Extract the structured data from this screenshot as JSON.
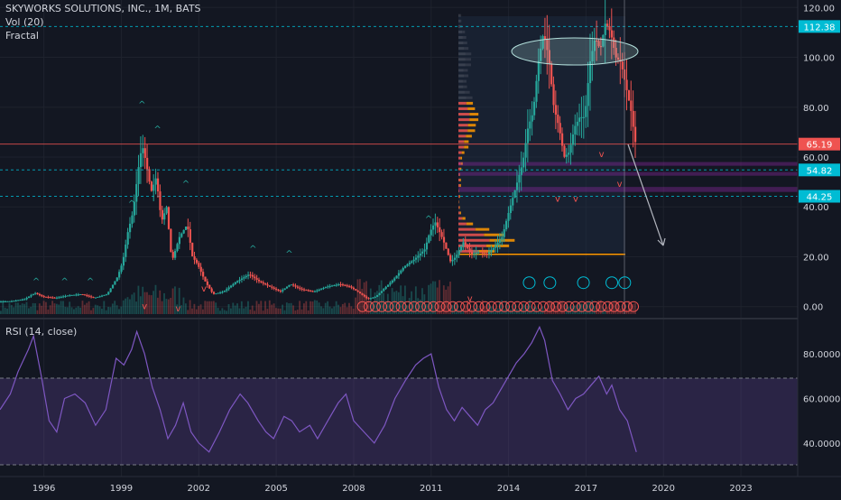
{
  "header": {
    "symbol_line": "SKYWORKS SOLUTIONS, INC., 1M, BATS",
    "vol_label": "Vol (20)",
    "fractal_label": "Fractal"
  },
  "rsi": {
    "label": "RSI (14, close)",
    "ticks": [
      {
        "value": 80,
        "label": "80.0000"
      },
      {
        "value": 60,
        "label": "60.0000"
      },
      {
        "value": 40,
        "label": "40.0000"
      }
    ],
    "upper_band": 70,
    "lower_band": 30,
    "band_color": "#7e57c2"
  },
  "colors": {
    "background": "#131722",
    "up": "#26a69a",
    "down": "#ef5350",
    "text": "#d1d4dc",
    "resistance": "#00bcd4",
    "support_band": "#9c27b0",
    "volume_profile_up": "#ef5350",
    "volume_profile_down": "#ff9800"
  },
  "chart_data": [
    {
      "type": "line",
      "title": "SKYWORKS SOLUTIONS, INC., 1M, BATS",
      "yticks": [
        {
          "value": 120,
          "label": "120.00"
        },
        {
          "value": 100,
          "label": "100.00"
        },
        {
          "value": 80,
          "label": "80.00"
        },
        {
          "value": 60,
          "label": "60.00"
        },
        {
          "value": 40,
          "label": "40.00"
        },
        {
          "value": 20,
          "label": "20.00"
        },
        {
          "value": 0,
          "label": "0.00"
        }
      ],
      "xticks": [
        "1996",
        "1999",
        "2002",
        "2005",
        "2008",
        "2011",
        "2014",
        "2017",
        "2020",
        "2023"
      ],
      "xtick_years": [
        1996,
        1999,
        2002,
        2005,
        2008,
        2011,
        2014,
        2017,
        2020,
        2023
      ],
      "ylim": [
        -3,
        123
      ],
      "xlim": [
        1994.3,
        2025.2
      ],
      "price_levels": [
        {
          "value": 112.38,
          "label": "112.38",
          "color": "#00bcd4"
        },
        {
          "value": 65.19,
          "label": "65.19",
          "color": "#ef5350"
        },
        {
          "value": 54.82,
          "label": "54.82",
          "color": "#00bcd4"
        },
        {
          "value": 44.25,
          "label": "44.25",
          "color": "#00bcd4"
        }
      ],
      "support_bands": [
        [
          56.5,
          58
        ],
        [
          52.5,
          54
        ],
        [
          46,
          48
        ]
      ],
      "series": [
        {
          "values": [
            [
              1994.3,
              2
            ],
            [
              1994.8,
              2.2
            ],
            [
              1995.3,
              3
            ],
            [
              1995.7,
              5.5
            ],
            [
              1996.0,
              4
            ],
            [
              1996.5,
              3.5
            ],
            [
              1997.0,
              4.5
            ],
            [
              1997.5,
              5
            ],
            [
              1998.0,
              3.5
            ],
            [
              1998.5,
              5
            ],
            [
              1998.9,
              12
            ],
            [
              1999.1,
              18
            ],
            [
              1999.3,
              30
            ],
            [
              1999.5,
              38
            ],
            [
              1999.7,
              55
            ],
            [
              1999.85,
              65
            ],
            [
              2000.0,
              58
            ],
            [
              2000.2,
              46
            ],
            [
              2000.4,
              52
            ],
            [
              2000.6,
              34
            ],
            [
              2000.8,
              40
            ],
            [
              2001.0,
              18
            ],
            [
              2001.3,
              28
            ],
            [
              2001.6,
              33
            ],
            [
              2001.8,
              20
            ],
            [
              2002.0,
              17
            ],
            [
              2002.3,
              10
            ],
            [
              2002.6,
              5
            ],
            [
              2003.0,
              6
            ],
            [
              2003.5,
              10
            ],
            [
              2004.0,
              13
            ],
            [
              2004.4,
              10
            ],
            [
              2004.8,
              8
            ],
            [
              2005.2,
              6
            ],
            [
              2005.6,
              9
            ],
            [
              2006.0,
              7
            ],
            [
              2006.5,
              6
            ],
            [
              2007.0,
              8
            ],
            [
              2007.5,
              9
            ],
            [
              2007.9,
              8
            ],
            [
              2008.2,
              6
            ],
            [
              2008.6,
              3
            ],
            [
              2008.9,
              4
            ],
            [
              2009.2,
              7
            ],
            [
              2009.6,
              11
            ],
            [
              2010.0,
              16
            ],
            [
              2010.4,
              19
            ],
            [
              2010.8,
              23
            ],
            [
              2011.0,
              30
            ],
            [
              2011.2,
              34
            ],
            [
              2011.5,
              27
            ],
            [
              2011.8,
              18
            ],
            [
              2012.0,
              20
            ],
            [
              2012.3,
              26
            ],
            [
              2012.6,
              21
            ],
            [
              2012.9,
              22
            ],
            [
              2013.2,
              21
            ],
            [
              2013.5,
              24
            ],
            [
              2013.8,
              28
            ],
            [
              2014.0,
              36
            ],
            [
              2014.3,
              47
            ],
            [
              2014.6,
              58
            ],
            [
              2014.8,
              72
            ],
            [
              2015.0,
              78
            ],
            [
              2015.2,
              98
            ],
            [
              2015.4,
              110
            ],
            [
              2015.6,
              100
            ],
            [
              2015.8,
              80
            ],
            [
              2016.0,
              72
            ],
            [
              2016.2,
              60
            ],
            [
              2016.4,
              62
            ],
            [
              2016.6,
              72
            ],
            [
              2016.8,
              76
            ],
            [
              2017.0,
              76
            ],
            [
              2017.2,
              98
            ],
            [
              2017.4,
              108
            ],
            [
              2017.6,
              103
            ],
            [
              2017.8,
              114
            ],
            [
              2018.0,
              110
            ],
            [
              2018.2,
              100
            ],
            [
              2018.4,
              98
            ],
            [
              2018.6,
              88
            ],
            [
              2018.8,
              78
            ],
            [
              2018.95,
              66
            ]
          ]
        }
      ]
    },
    {
      "type": "line",
      "title": "RSI (14, close)",
      "ylim": [
        25,
        95
      ],
      "series": [
        {
          "values": [
            [
              1994.3,
              55
            ],
            [
              1994.7,
              62
            ],
            [
              1995.0,
              72
            ],
            [
              1995.4,
              82
            ],
            [
              1995.6,
              88
            ],
            [
              1995.9,
              70
            ],
            [
              1996.2,
              50
            ],
            [
              1996.5,
              45
            ],
            [
              1996.8,
              60
            ],
            [
              1997.2,
              62
            ],
            [
              1997.6,
              58
            ],
            [
              1998.0,
              48
            ],
            [
              1998.4,
              55
            ],
            [
              1998.8,
              78
            ],
            [
              1999.1,
              75
            ],
            [
              1999.4,
              82
            ],
            [
              1999.6,
              90
            ],
            [
              1999.9,
              80
            ],
            [
              2000.2,
              65
            ],
            [
              2000.5,
              55
            ],
            [
              2000.8,
              42
            ],
            [
              2001.1,
              48
            ],
            [
              2001.4,
              58
            ],
            [
              2001.7,
              45
            ],
            [
              2002.0,
              40
            ],
            [
              2002.4,
              36
            ],
            [
              2002.8,
              45
            ],
            [
              2003.2,
              55
            ],
            [
              2003.6,
              62
            ],
            [
              2003.9,
              58
            ],
            [
              2004.3,
              50
            ],
            [
              2004.6,
              45
            ],
            [
              2004.9,
              42
            ],
            [
              2005.3,
              52
            ],
            [
              2005.6,
              50
            ],
            [
              2005.9,
              45
            ],
            [
              2006.3,
              48
            ],
            [
              2006.6,
              42
            ],
            [
              2007.0,
              50
            ],
            [
              2007.4,
              58
            ],
            [
              2007.7,
              62
            ],
            [
              2008.0,
              50
            ],
            [
              2008.4,
              45
            ],
            [
              2008.8,
              40
            ],
            [
              2009.2,
              48
            ],
            [
              2009.6,
              60
            ],
            [
              2010.0,
              68
            ],
            [
              2010.4,
              75
            ],
            [
              2010.7,
              78
            ],
            [
              2011.0,
              80
            ],
            [
              2011.3,
              65
            ],
            [
              2011.6,
              55
            ],
            [
              2011.9,
              50
            ],
            [
              2012.2,
              56
            ],
            [
              2012.5,
              52
            ],
            [
              2012.8,
              48
            ],
            [
              2013.1,
              55
            ],
            [
              2013.4,
              58
            ],
            [
              2013.7,
              64
            ],
            [
              2014.0,
              70
            ],
            [
              2014.3,
              76
            ],
            [
              2014.6,
              80
            ],
            [
              2014.9,
              85
            ],
            [
              2015.2,
              92
            ],
            [
              2015.4,
              86
            ],
            [
              2015.7,
              68
            ],
            [
              2016.0,
              62
            ],
            [
              2016.3,
              55
            ],
            [
              2016.6,
              60
            ],
            [
              2016.9,
              62
            ],
            [
              2017.2,
              66
            ],
            [
              2017.5,
              70
            ],
            [
              2017.8,
              62
            ],
            [
              2018.0,
              66
            ],
            [
              2018.3,
              55
            ],
            [
              2018.6,
              50
            ],
            [
              2018.8,
              42
            ],
            [
              2018.95,
              36
            ]
          ]
        }
      ]
    }
  ]
}
